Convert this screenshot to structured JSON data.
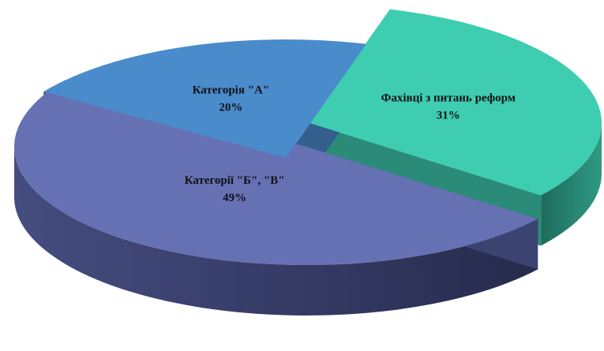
{
  "chart_data": {
    "type": "pie",
    "title": "",
    "style": "3d-exploded",
    "slices": [
      {
        "label": "Фахівці з питань реформ",
        "value": 31,
        "value_label": "31%",
        "color": "#3ecdb1",
        "side_color": "#2a8c78"
      },
      {
        "label": "Категорії \"Б\", \"В\"",
        "value": 49,
        "value_label": "49%",
        "color": "#6671b4",
        "side_color": "#3b4370"
      },
      {
        "label": "Категорія \"А\"",
        "value": 20,
        "value_label": "20%",
        "color": "#4a8bcc",
        "side_color": "#335f8c"
      }
    ]
  }
}
